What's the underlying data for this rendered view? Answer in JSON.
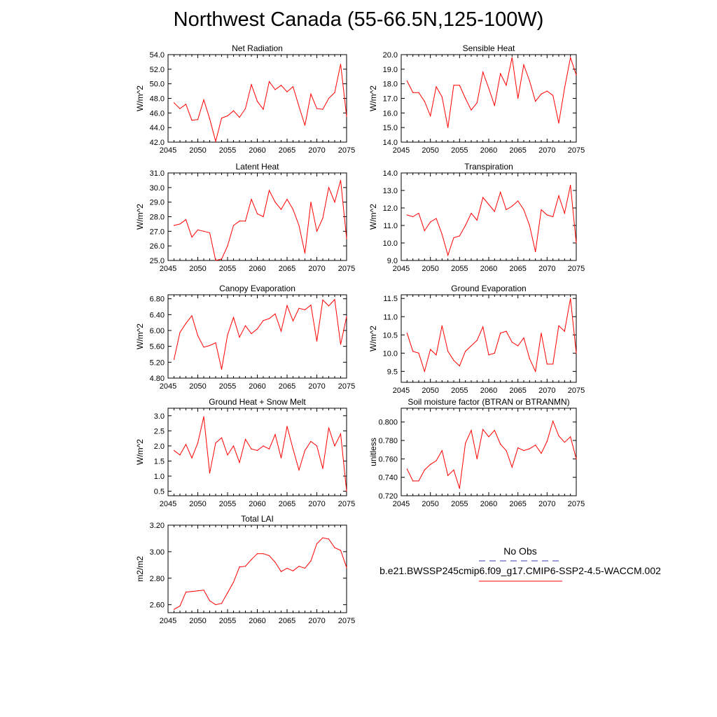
{
  "title": "Northwest Canada (55-66.5N,125-100W)",
  "legend": {
    "obs_label": "No Obs",
    "obs_color": "#3b3bb0",
    "model_label": "b.e21.BWSSP245cmip6.f09_g17.CMIP6-SSP2-4.5-WACCM.002",
    "model_color": "#ff0000"
  },
  "chart_data": [
    {
      "type": "line",
      "title": "Net Radiation",
      "ylabel": "W/m^2",
      "xlim": [
        2045,
        2075
      ],
      "ylim": [
        42.0,
        54.0
      ],
      "xticks": [
        2045,
        2050,
        2055,
        2060,
        2065,
        2070,
        2075
      ],
      "yticks": [
        "42.0",
        "44.0",
        "46.0",
        "48.0",
        "50.0",
        "52.0",
        "54.0"
      ],
      "x": [
        2046,
        2047,
        2048,
        2049,
        2050,
        2051,
        2052,
        2053,
        2054,
        2055,
        2056,
        2057,
        2058,
        2059,
        2060,
        2061,
        2062,
        2063,
        2064,
        2065,
        2066,
        2067,
        2068,
        2069,
        2070,
        2071,
        2072,
        2073,
        2074,
        2075
      ],
      "values": [
        47.4,
        46.6,
        47.2,
        45.0,
        45.1,
        47.8,
        45.2,
        42.1,
        45.3,
        45.6,
        46.3,
        45.4,
        46.6,
        49.9,
        47.6,
        46.5,
        50.3,
        49.2,
        49.8,
        48.9,
        49.6,
        46.9,
        44.3,
        48.6,
        46.6,
        46.5,
        48.0,
        48.8,
        52.7,
        45.5
      ],
      "color": "#ff0000"
    },
    {
      "type": "line",
      "title": "Sensible Heat",
      "ylabel": "W/m^2",
      "xlim": [
        2045,
        2075
      ],
      "ylim": [
        14.0,
        20.0
      ],
      "xticks": [
        2045,
        2050,
        2055,
        2060,
        2065,
        2070,
        2075
      ],
      "yticks": [
        "14.0",
        "15.0",
        "16.0",
        "17.0",
        "18.0",
        "19.0",
        "20.0"
      ],
      "x": [
        2046,
        2047,
        2048,
        2049,
        2050,
        2051,
        2052,
        2053,
        2054,
        2055,
        2056,
        2057,
        2058,
        2059,
        2060,
        2061,
        2062,
        2063,
        2064,
        2065,
        2066,
        2067,
        2068,
        2069,
        2070,
        2071,
        2072,
        2073,
        2074,
        2075
      ],
      "values": [
        18.2,
        17.4,
        17.4,
        16.8,
        15.8,
        17.8,
        17.1,
        15.0,
        17.9,
        17.9,
        17.0,
        16.2,
        16.7,
        18.8,
        17.7,
        16.5,
        18.7,
        17.9,
        19.8,
        17.0,
        19.3,
        18.2,
        16.8,
        17.3,
        17.5,
        17.2,
        15.3,
        17.7,
        19.8,
        18.6
      ],
      "color": "#ff0000"
    },
    {
      "type": "line",
      "title": "Latent Heat",
      "ylabel": "W/m^2",
      "xlim": [
        2045,
        2075
      ],
      "ylim": [
        25.0,
        31.0
      ],
      "xticks": [
        2045,
        2050,
        2055,
        2060,
        2065,
        2070,
        2075
      ],
      "yticks": [
        "25.0",
        "26.0",
        "27.0",
        "28.0",
        "29.0",
        "30.0",
        "31.0"
      ],
      "x": [
        2046,
        2047,
        2048,
        2049,
        2050,
        2051,
        2052,
        2053,
        2054,
        2055,
        2056,
        2057,
        2058,
        2059,
        2060,
        2061,
        2062,
        2063,
        2064,
        2065,
        2066,
        2067,
        2068,
        2069,
        2070,
        2071,
        2072,
        2073,
        2074,
        2075
      ],
      "values": [
        27.4,
        27.5,
        27.8,
        26.6,
        27.1,
        27.0,
        26.9,
        25.0,
        25.1,
        26.0,
        27.4,
        27.7,
        27.7,
        29.2,
        28.2,
        28.0,
        29.8,
        29.0,
        28.5,
        29.2,
        28.5,
        27.4,
        25.5,
        29.0,
        27.0,
        27.9,
        30.0,
        29.0,
        30.5,
        26.5
      ],
      "color": "#ff0000"
    },
    {
      "type": "line",
      "title": "Transpiration",
      "ylabel": "W/m^2",
      "xlim": [
        2045,
        2075
      ],
      "ylim": [
        9.0,
        14.0
      ],
      "xticks": [
        2045,
        2050,
        2055,
        2060,
        2065,
        2070,
        2075
      ],
      "yticks": [
        "9.0",
        "10.0",
        "11.0",
        "12.0",
        "13.0",
        "14.0"
      ],
      "x": [
        2046,
        2047,
        2048,
        2049,
        2050,
        2051,
        2052,
        2053,
        2054,
        2055,
        2056,
        2057,
        2058,
        2059,
        2060,
        2061,
        2062,
        2063,
        2064,
        2065,
        2066,
        2067,
        2068,
        2069,
        2070,
        2071,
        2072,
        2073,
        2074,
        2075
      ],
      "values": [
        11.6,
        11.5,
        11.7,
        10.7,
        11.2,
        11.4,
        10.5,
        9.3,
        10.3,
        10.4,
        11.0,
        11.7,
        11.3,
        12.6,
        12.2,
        11.8,
        12.9,
        11.9,
        12.1,
        12.4,
        11.9,
        11.0,
        9.5,
        11.9,
        11.6,
        11.5,
        12.7,
        11.7,
        13.3,
        10.0
      ],
      "color": "#ff0000"
    },
    {
      "type": "line",
      "title": "Canopy Evaporation",
      "ylabel": "W/m^2",
      "xlim": [
        2045,
        2075
      ],
      "ylim": [
        4.8,
        6.9
      ],
      "xticks": [
        2045,
        2050,
        2055,
        2060,
        2065,
        2070,
        2075
      ],
      "yticks": [
        "4.80",
        "5.20",
        "5.60",
        "6.00",
        "6.40",
        "6.80"
      ],
      "x": [
        2046,
        2047,
        2048,
        2049,
        2050,
        2051,
        2052,
        2053,
        2054,
        2055,
        2056,
        2057,
        2058,
        2059,
        2060,
        2061,
        2062,
        2063,
        2064,
        2065,
        2066,
        2067,
        2068,
        2069,
        2070,
        2071,
        2072,
        2073,
        2074,
        2075
      ],
      "values": [
        5.27,
        5.95,
        6.18,
        6.37,
        5.87,
        5.58,
        5.62,
        5.69,
        5.02,
        5.89,
        6.33,
        5.83,
        6.12,
        5.92,
        6.04,
        6.25,
        6.3,
        6.42,
        5.98,
        6.63,
        6.24,
        6.56,
        6.52,
        6.64,
        5.73,
        6.77,
        6.62,
        6.78,
        5.65,
        6.35
      ],
      "color": "#ff0000"
    },
    {
      "type": "line",
      "title": "Ground Evaporation",
      "ylabel": "W/m^2",
      "xlim": [
        2045,
        2075
      ],
      "ylim": [
        9.2,
        11.6
      ],
      "xticks": [
        2045,
        2050,
        2055,
        2060,
        2065,
        2070,
        2075
      ],
      "yticks": [
        "9.5",
        "10.0",
        "10.5",
        "11.0",
        "11.5"
      ],
      "x": [
        2046,
        2047,
        2048,
        2049,
        2050,
        2051,
        2052,
        2053,
        2054,
        2055,
        2056,
        2057,
        2058,
        2059,
        2060,
        2061,
        2062,
        2063,
        2064,
        2065,
        2066,
        2067,
        2068,
        2069,
        2070,
        2071,
        2072,
        2073,
        2074,
        2075
      ],
      "values": [
        10.55,
        10.05,
        10.0,
        9.5,
        10.1,
        9.95,
        10.75,
        10.05,
        9.8,
        9.65,
        10.05,
        10.2,
        10.35,
        10.72,
        9.95,
        10.0,
        10.55,
        10.6,
        10.3,
        10.2,
        10.42,
        9.85,
        9.5,
        10.55,
        9.7,
        9.7,
        10.75,
        10.6,
        11.5,
        10.0
      ],
      "color": "#ff0000"
    },
    {
      "type": "line",
      "title": "Ground Heat + Snow Melt",
      "ylabel": "W/m^2",
      "xlim": [
        2045,
        2075
      ],
      "ylim": [
        0.35,
        3.25
      ],
      "xticks": [
        2045,
        2050,
        2055,
        2060,
        2065,
        2070,
        2075
      ],
      "yticks": [
        "0.5",
        "1.0",
        "1.5",
        "2.0",
        "2.5",
        "3.0"
      ],
      "x": [
        2046,
        2047,
        2048,
        2049,
        2050,
        2051,
        2052,
        2053,
        2054,
        2055,
        2056,
        2057,
        2058,
        2059,
        2060,
        2061,
        2062,
        2063,
        2064,
        2065,
        2066,
        2067,
        2068,
        2069,
        2070,
        2071,
        2072,
        2073,
        2074,
        2075
      ],
      "values": [
        1.85,
        1.7,
        2.05,
        1.6,
        2.1,
        2.97,
        1.1,
        2.1,
        2.27,
        1.7,
        2.0,
        1.45,
        2.22,
        1.9,
        1.85,
        2.0,
        1.9,
        2.38,
        1.6,
        2.65,
        1.9,
        1.2,
        1.85,
        2.15,
        2.0,
        1.25,
        2.6,
        2.0,
        2.4,
        0.5
      ],
      "color": "#ff0000"
    },
    {
      "type": "line",
      "title": "Soil moisture factor (BTRAN or BTRANMN)",
      "ylabel": "unitless",
      "xlim": [
        2045,
        2075
      ],
      "ylim": [
        0.72,
        0.815
      ],
      "xticks": [
        2045,
        2050,
        2055,
        2060,
        2065,
        2070,
        2075
      ],
      "yticks": [
        "0.720",
        "0.740",
        "0.760",
        "0.780",
        "0.800"
      ],
      "x": [
        2046,
        2047,
        2048,
        2049,
        2050,
        2051,
        2052,
        2053,
        2054,
        2055,
        2056,
        2057,
        2058,
        2059,
        2060,
        2061,
        2062,
        2063,
        2064,
        2065,
        2066,
        2067,
        2068,
        2069,
        2070,
        2071,
        2072,
        2073,
        2074,
        2075
      ],
      "values": [
        0.749,
        0.736,
        0.736,
        0.748,
        0.754,
        0.758,
        0.769,
        0.742,
        0.748,
        0.728,
        0.777,
        0.791,
        0.76,
        0.792,
        0.784,
        0.791,
        0.776,
        0.769,
        0.751,
        0.772,
        0.769,
        0.771,
        0.775,
        0.766,
        0.779,
        0.801,
        0.785,
        0.778,
        0.784,
        0.76
      ],
      "color": "#ff0000"
    },
    {
      "type": "line",
      "title": "Total LAI",
      "ylabel": "m2/m2",
      "xlim": [
        2045,
        2075
      ],
      "ylim": [
        2.54,
        3.2
      ],
      "xticks": [
        2045,
        2050,
        2055,
        2060,
        2065,
        2070,
        2075
      ],
      "yticks": [
        "2.60",
        "2.80",
        "3.00",
        "3.20"
      ],
      "x": [
        2046,
        2047,
        2048,
        2049,
        2050,
        2051,
        2052,
        2053,
        2054,
        2055,
        2056,
        2057,
        2058,
        2059,
        2060,
        2061,
        2062,
        2063,
        2064,
        2065,
        2066,
        2067,
        2068,
        2069,
        2070,
        2071,
        2072,
        2073,
        2074,
        2075
      ],
      "values": [
        2.565,
        2.59,
        2.695,
        2.7,
        2.705,
        2.71,
        2.63,
        2.6,
        2.61,
        2.69,
        2.77,
        2.885,
        2.89,
        2.94,
        2.985,
        2.985,
        2.97,
        2.92,
        2.85,
        2.875,
        2.855,
        2.89,
        2.875,
        2.93,
        3.06,
        3.105,
        3.095,
        3.03,
        3.01,
        2.88
      ],
      "color": "#ff0000"
    }
  ]
}
